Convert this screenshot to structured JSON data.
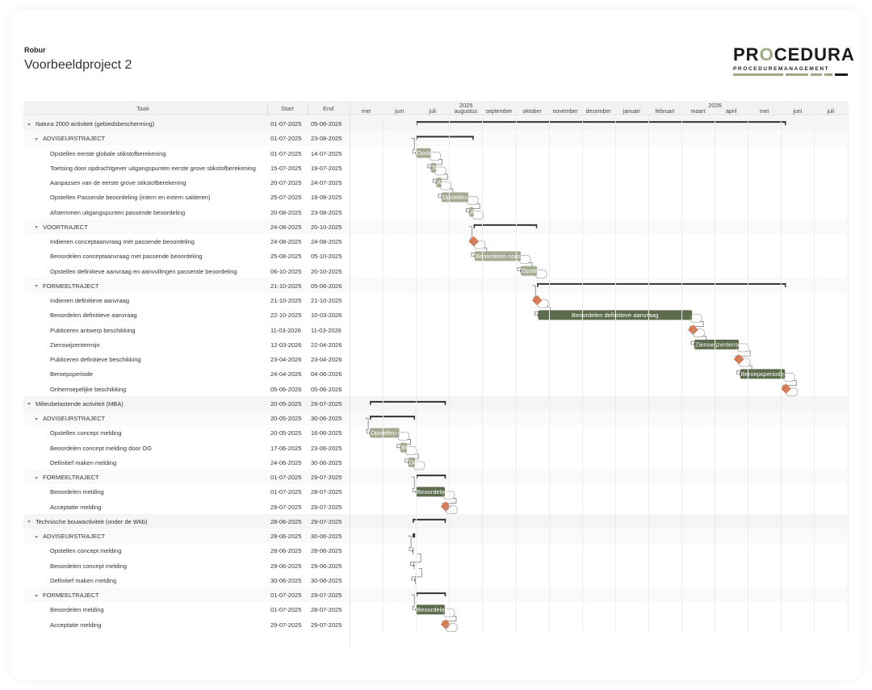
{
  "header": {
    "client": "Robur",
    "project_title": "Voorbeeldproject 2",
    "logo_brand_left": "PR",
    "logo_brand_o": "O",
    "logo_brand_right": "CEDURA",
    "logo_tagline": "PROCEDUREMANAGEMENT"
  },
  "columns": {
    "task": "Taak",
    "start": "Start",
    "end": "End"
  },
  "timeline": {
    "years": [
      {
        "label": "2025",
        "month_index": 3.5
      },
      {
        "label": "2026",
        "month_index": 11
      }
    ],
    "months": [
      "mei",
      "juni",
      "juli",
      "augustus",
      "september",
      "oktober",
      "november",
      "december",
      "januari",
      "februari",
      "maart",
      "april",
      "mei",
      "juni",
      "juli"
    ]
  },
  "colors": {
    "light_bar": "#a3ab91",
    "dark_bar": "#5d6c4d",
    "milestone": "#d9784f",
    "summary": "#333333",
    "connector": "#777777"
  },
  "rows": [
    {
      "level": 0,
      "name": "Natura 2000-activiteit (gebiedsbescherming)",
      "start": "01-07-2025",
      "end": "05-06-2026",
      "type": "summary",
      "s": 2.0,
      "e": 13.15
    },
    {
      "level": 1,
      "name": "ADVISEURSTRAJECT",
      "start": "01-07-2025",
      "end": "23-08-2025",
      "type": "summary",
      "s": 2.0,
      "e": 3.74
    },
    {
      "level": 2,
      "name": "Opstellen eerste globale stikstofberekening",
      "start": "01-07-2025",
      "end": "14-07-2025",
      "type": "task",
      "tone": "light",
      "label": "Opste",
      "s": 2.0,
      "e": 2.45
    },
    {
      "level": 2,
      "name": "Toetsing door opdrachtgever uitgangspunten eerste grove stikstofberekening",
      "start": "15-07-2025",
      "end": "19-07-2025",
      "type": "task",
      "tone": "light",
      "label": "To",
      "s": 2.45,
      "e": 2.61
    },
    {
      "level": 2,
      "name": "Aanpassen van de eerste grove stikstofberekening",
      "start": "20-07-2025",
      "end": "24-07-2025",
      "type": "task",
      "tone": "light",
      "label": "Aa",
      "s": 2.61,
      "e": 2.77
    },
    {
      "level": 2,
      "name": "Opstellen Passende beoordeling (intern en extern salderen)",
      "start": "25-07-2025",
      "end": "19-08-2025",
      "type": "task",
      "tone": "light",
      "label": "Opstellen",
      "s": 2.77,
      "e": 3.58
    },
    {
      "level": 2,
      "name": "Afstemmen uitgangspunten passende beoordeling",
      "start": "20-08-2025",
      "end": "23-08-2025",
      "type": "task",
      "tone": "light",
      "label": "A",
      "s": 3.61,
      "e": 3.74
    },
    {
      "level": 1,
      "name": "VOORTRAJECT",
      "start": "24-08-2025",
      "end": "20-10-2025",
      "type": "summary",
      "s": 3.74,
      "e": 5.65
    },
    {
      "level": 2,
      "name": "Indienen conceptaanvraag mét passende beoordeling",
      "start": "24-08-2025",
      "end": "24-08-2025",
      "type": "milestone",
      "s": 3.74,
      "e": 3.74
    },
    {
      "level": 2,
      "name": "Beoordelen conceptaanvraag met passende beoordeling",
      "start": "25-08-2025",
      "end": "05-10-2025",
      "type": "task",
      "tone": "light",
      "label": "Beoordelen conc",
      "s": 3.77,
      "e": 5.16
    },
    {
      "level": 2,
      "name": "Opstellen definitieve aanvraag en aanvullingen passende beoordeling",
      "start": "06-10-2025",
      "end": "20-10-2025",
      "type": "task",
      "tone": "light",
      "label": "Opste",
      "s": 5.16,
      "e": 5.65
    },
    {
      "level": 1,
      "name": "FORMEELTRAJECT",
      "start": "21-10-2025",
      "end": "05-06-2026",
      "type": "summary",
      "s": 5.65,
      "e": 13.15
    },
    {
      "level": 2,
      "name": "Indienen definitieve aanvraag",
      "start": "21-10-2025",
      "end": "21-10-2025",
      "type": "milestone",
      "s": 5.65,
      "e": 5.65
    },
    {
      "level": 2,
      "name": "Beoordelen definitieve aanvraag",
      "start": "22-10-2025",
      "end": "10-03-2026",
      "type": "task",
      "tone": "dark",
      "label": "Beoordelen definitieve aanvraag",
      "s": 5.68,
      "e": 10.32
    },
    {
      "level": 2,
      "name": "Publiceren antwerp beschikking",
      "start": "11-03-2026",
      "end": "11-03-2026",
      "type": "milestone",
      "s": 10.35,
      "e": 10.35
    },
    {
      "level": 2,
      "name": "Zienswijzentermijn",
      "start": "12-03-2026",
      "end": "22-04-2026",
      "type": "task",
      "tone": "dark",
      "label": "Zienswijzentermi",
      "s": 10.39,
      "e": 11.73
    },
    {
      "level": 2,
      "name": "Publiceren definitieve beschikking",
      "start": "23-04-2026",
      "end": "23-04-2026",
      "type": "milestone",
      "s": 11.73,
      "e": 11.73
    },
    {
      "level": 2,
      "name": "Beroepsperiode",
      "start": "24-04-2026",
      "end": "04-06-2026",
      "type": "task",
      "tone": "dark",
      "label": "Beroepsperiode",
      "s": 11.77,
      "e": 13.12
    },
    {
      "level": 2,
      "name": "Onherroepelijke beschikking",
      "start": "05-06-2026",
      "end": "05-06-2026",
      "type": "milestone",
      "s": 13.15,
      "e": 13.15
    },
    {
      "level": 0,
      "name": "Milieubelastende activiteit (MBA)",
      "start": "20-05-2025",
      "end": "29-07-2025",
      "type": "summary",
      "s": 0.61,
      "e": 2.9
    },
    {
      "level": 1,
      "name": "ADVISEURSTRAJECT",
      "start": "20-05-2025",
      "end": "30-06-2025",
      "type": "summary",
      "s": 0.61,
      "e": 1.97
    },
    {
      "level": 2,
      "name": "Opstellen concept melding",
      "start": "20-05-2025",
      "end": "16-06-2025",
      "type": "task",
      "tone": "light",
      "label": "Opstellen c",
      "s": 0.61,
      "e": 1.5
    },
    {
      "level": 2,
      "name": "Beoordelen concept melding door OG",
      "start": "17-06-2025",
      "end": "23-06-2025",
      "type": "task",
      "tone": "light",
      "label": "Be",
      "s": 1.53,
      "e": 1.73
    },
    {
      "level": 2,
      "name": "Definitief maken melding",
      "start": "24-06-2025",
      "end": "30-06-2025",
      "type": "task",
      "tone": "light",
      "label": "De",
      "s": 1.77,
      "e": 1.97
    },
    {
      "level": 1,
      "name": "FORMEELTRAJECT",
      "start": "01-07-2025",
      "end": "29-07-2025",
      "type": "summary",
      "s": 2.0,
      "e": 2.9
    },
    {
      "level": 2,
      "name": "Beoordelen melding",
      "start": "01-07-2025",
      "end": "28-07-2025",
      "type": "task",
      "tone": "dark",
      "label": "Beoordelen",
      "s": 2.0,
      "e": 2.87
    },
    {
      "level": 2,
      "name": "Acceptatie melding",
      "start": "29-07-2025",
      "end": "29-07-2025",
      "type": "milestone",
      "s": 2.9,
      "e": 2.9
    },
    {
      "level": 0,
      "name": "Technische bouwactiviteit (onder de Wkb)",
      "start": "28-06-2025",
      "end": "29-07-2025",
      "type": "summary",
      "s": 1.9,
      "e": 2.9
    },
    {
      "level": 1,
      "name": "ADVISEURSTRAJECT",
      "start": "28-06-2025",
      "end": "30-06-2025",
      "type": "summary",
      "s": 1.9,
      "e": 1.97
    },
    {
      "level": 2,
      "name": "Opstellen concept melding",
      "start": "28-06-2025",
      "end": "28-06-2025",
      "type": "tick",
      "s": 1.9,
      "e": 1.9
    },
    {
      "level": 2,
      "name": "Beoordelen concept melding",
      "start": "29-06-2025",
      "end": "29-06-2025",
      "type": "tick",
      "s": 1.93,
      "e": 1.93
    },
    {
      "level": 2,
      "name": "Definitief maken melding",
      "start": "30-06-2025",
      "end": "30-06-2025",
      "type": "tick",
      "s": 1.97,
      "e": 1.97
    },
    {
      "level": 1,
      "name": "FORMEELTRAJECT",
      "start": "01-07-2025",
      "end": "29-07-2025",
      "type": "summary",
      "s": 2.0,
      "e": 2.9
    },
    {
      "level": 2,
      "name": "Beoordelen melding",
      "start": "01-07-2025",
      "end": "28-07-2025",
      "type": "task",
      "tone": "dark",
      "label": "Beoordelen",
      "s": 2.0,
      "e": 2.87
    },
    {
      "level": 2,
      "name": "Acceptatie melding",
      "start": "29-07-2025",
      "end": "29-07-2025",
      "type": "milestone",
      "s": 2.9,
      "e": 2.9
    }
  ]
}
